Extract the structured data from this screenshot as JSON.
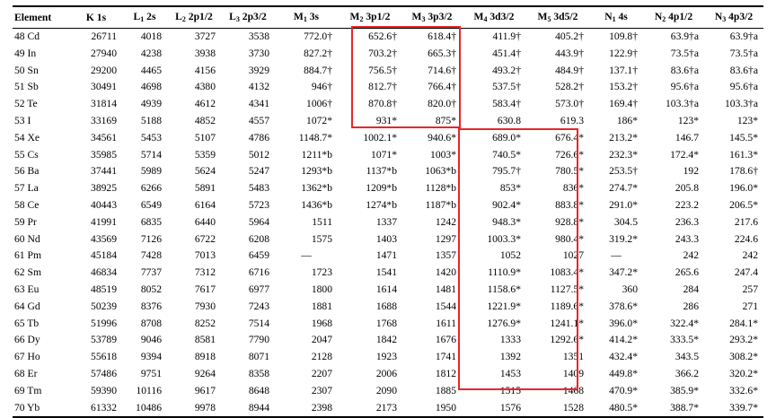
{
  "headers": [
    {
      "main": "Element",
      "sub": "",
      "rest": ""
    },
    {
      "main": "K 1s",
      "sub": "",
      "rest": ""
    },
    {
      "main": "L",
      "sub": "1",
      "rest": " 2s"
    },
    {
      "main": "L",
      "sub": "2",
      "rest": " 2p1/2"
    },
    {
      "main": "L",
      "sub": "3",
      "rest": " 2p3/2"
    },
    {
      "main": "M",
      "sub": "1",
      "rest": " 3s"
    },
    {
      "main": "M",
      "sub": "2",
      "rest": " 3p1/2"
    },
    {
      "main": "M",
      "sub": "3",
      "rest": " 3p3/2"
    },
    {
      "main": "M",
      "sub": "4",
      "rest": " 3d3/2"
    },
    {
      "main": "M",
      "sub": "5",
      "rest": " 3d5/2"
    },
    {
      "main": "N",
      "sub": "1",
      "rest": " 4s"
    },
    {
      "main": "N",
      "sub": "2",
      "rest": " 4p1/2"
    },
    {
      "main": "N",
      "sub": "3",
      "rest": " 4p3/2"
    }
  ],
  "rows": [
    [
      "48 Cd",
      "26711",
      "4018",
      "3727",
      "3538",
      "772.0†",
      "652.6†",
      "618.4†",
      "411.9†",
      "405.2†",
      "109.8†",
      "63.9†a",
      "63.9†a"
    ],
    [
      "49 In",
      "27940",
      "4238",
      "3938",
      "3730",
      "827.2†",
      "703.2†",
      "665.3†",
      "451.4†",
      "443.9†",
      "122.9†",
      "73.5†a",
      "73.5†a"
    ],
    [
      "50 Sn",
      "29200",
      "4465",
      "4156",
      "3929",
      "884.7†",
      "756.5†",
      "714.6†",
      "493.2†",
      "484.9†",
      "137.1†",
      "83.6†a",
      "83.6†a"
    ],
    [
      "51 Sb",
      "30491",
      "4698",
      "4380",
      "4132",
      "946†",
      "812.7†",
      "766.4†",
      "537.5†",
      "528.2†",
      "153.2†",
      "95.6†a",
      "95.6†a"
    ],
    [
      "52 Te",
      "31814",
      "4939",
      "4612",
      "4341",
      "1006†",
      "870.8†",
      "820.0†",
      "583.4†",
      "573.0†",
      "169.4†",
      "103.3†a",
      "103.3†a"
    ],
    [
      "53 I",
      "33169",
      "5188",
      "4852",
      "4557",
      "1072*",
      "931*",
      "875*",
      "630.8",
      "619.3",
      "186*",
      "123*",
      "123*"
    ],
    [
      "54 Xe",
      "34561",
      "5453",
      "5107",
      "4786",
      "1148.7*",
      "1002.1*",
      "940.6*",
      "689.0*",
      "676.4*",
      "213.2*",
      "146.7",
      "145.5*"
    ],
    [
      "55 Cs",
      "35985",
      "5714",
      "5359",
      "5012",
      "1211*b",
      "1071*",
      "1003*",
      "740.5*",
      "726.6*",
      "232.3*",
      "172.4*",
      "161.3*"
    ],
    [
      "56 Ba",
      "37441",
      "5989",
      "5624",
      "5247",
      "1293*b",
      "1137*b",
      "1063*b",
      "795.7†",
      "780.5*",
      "253.5†",
      "192",
      "178.6†"
    ],
    [
      "57 La",
      "38925",
      "6266",
      "5891",
      "5483",
      "1362*b",
      "1209*b",
      "1128*b",
      "853*",
      "836*",
      "274.7*",
      "205.8",
      "196.0*"
    ],
    [
      "58 Ce",
      "40443",
      "6549",
      "6164",
      "5723",
      "1436*b",
      "1274*b",
      "1187*b",
      "902.4*",
      "883.8*",
      "291.0*",
      "223.2",
      "206.5*"
    ],
    [
      "59 Pr",
      "41991",
      "6835",
      "6440",
      "5964",
      "1511",
      "1337",
      "1242",
      "948.3*",
      "928.8*",
      "304.5",
      "236.3",
      "217.6"
    ],
    [
      "60 Nd",
      "43569",
      "7126",
      "6722",
      "6208",
      "1575",
      "1403",
      "1297",
      "1003.3*",
      "980.4*",
      "319.2*",
      "243.3",
      "224.6"
    ],
    [
      "61 Pm",
      "45184",
      "7428",
      "7013",
      "6459",
      "—",
      "1471",
      "1357",
      "1052",
      "1027",
      "—",
      "242",
      "242"
    ],
    [
      "62 Sm",
      "46834",
      "7737",
      "7312",
      "6716",
      "1723",
      "1541",
      "1420",
      "1110.9*",
      "1083.4*",
      "347.2*",
      "265.6",
      "247.4"
    ],
    [
      "63 Eu",
      "48519",
      "8052",
      "7617",
      "6977",
      "1800",
      "1614",
      "1481",
      "1158.6*",
      "1127.5*",
      "360",
      "284",
      "257"
    ],
    [
      "64 Gd",
      "50239",
      "8376",
      "7930",
      "7243",
      "1881",
      "1688",
      "1544",
      "1221.9*",
      "1189.6*",
      "378.6*",
      "286",
      "271"
    ],
    [
      "65 Tb",
      "51996",
      "8708",
      "8252",
      "7514",
      "1968",
      "1768",
      "1611",
      "1276.9*",
      "1241.1*",
      "396.0*",
      "322.4*",
      "284.1*"
    ],
    [
      "66 Dy",
      "53789",
      "9046",
      "8581",
      "7790",
      "2047",
      "1842",
      "1676",
      "1333",
      "1292.6*",
      "414.2*",
      "333.5*",
      "293.2*"
    ],
    [
      "67 Ho",
      "55618",
      "9394",
      "8918",
      "8071",
      "2128",
      "1923",
      "1741",
      "1392",
      "1351",
      "432.4*",
      "343.5",
      "308.2*"
    ],
    [
      "68 Er",
      "57486",
      "9751",
      "9264",
      "8358",
      "2207",
      "2006",
      "1812",
      "1453",
      "1409",
      "449.8*",
      "366.2",
      "320.2*"
    ],
    [
      "69 Tm",
      "59390",
      "10116",
      "9617",
      "8648",
      "2307",
      "2090",
      "1885",
      "1515",
      "1468",
      "470.9*",
      "385.9*",
      "332.6*"
    ],
    [
      "70 Yb",
      "61332",
      "10486",
      "9978",
      "8944",
      "2398",
      "2173",
      "1950",
      "1576",
      "1528",
      "480.5*",
      "388.7*",
      "339.7*"
    ]
  ],
  "highlight_color": "#e8262a"
}
